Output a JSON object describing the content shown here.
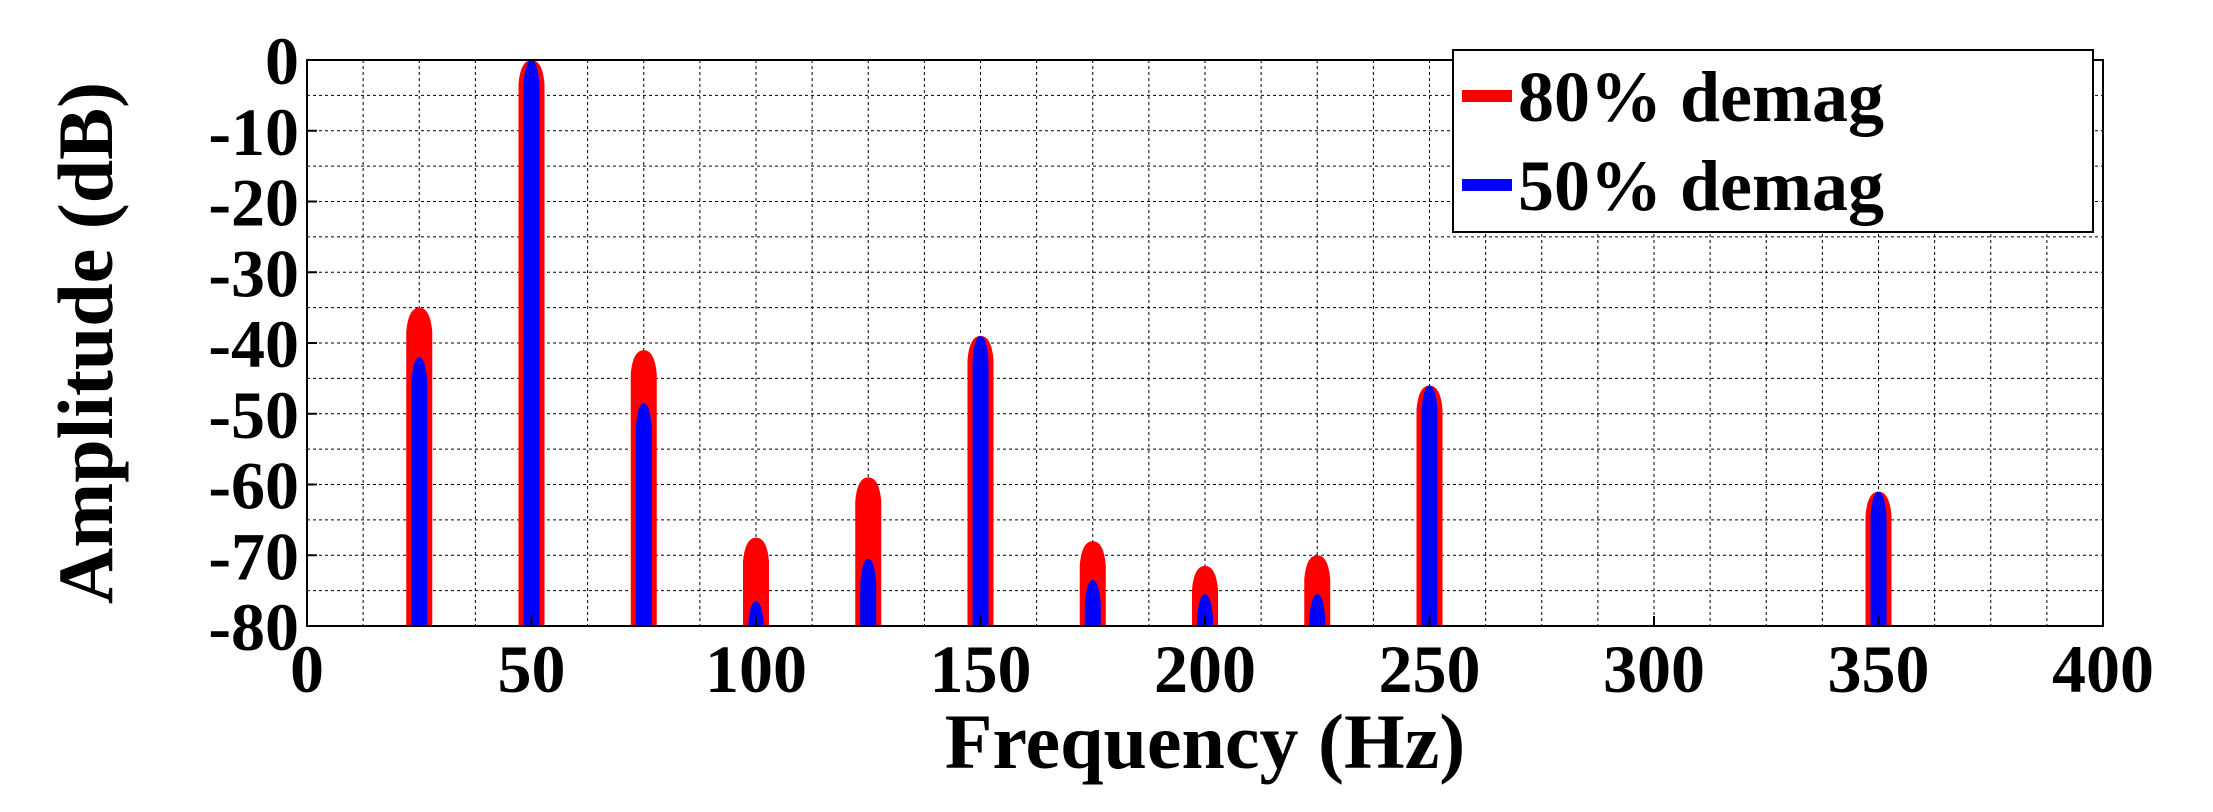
{
  "chart_data": {
    "type": "line",
    "xlabel": "Frequency (Hz)",
    "ylabel": "Amplitude (dB)",
    "xlim": [
      0,
      400
    ],
    "ylim": [
      -80,
      0
    ],
    "xticks": [
      0,
      50,
      100,
      150,
      200,
      250,
      300,
      350,
      400
    ],
    "yticks": [
      0,
      -10,
      -20,
      -30,
      -40,
      -50,
      -60,
      -70,
      -80
    ],
    "xtick_labels": [
      "0",
      "50",
      "100",
      "150",
      "200",
      "250",
      "300",
      "350",
      "400"
    ],
    "ytick_labels": [
      "0",
      "-10",
      "-20",
      "-30",
      "-40",
      "-50",
      "-60",
      "-70",
      "-80"
    ],
    "grid": true,
    "legend_position": "top-right",
    "series": [
      {
        "name": "80% demag",
        "color": "#ff0000",
        "peaks": [
          {
            "x": 25,
            "y": -35
          },
          {
            "x": 50,
            "y": 0
          },
          {
            "x": 75,
            "y": -41
          },
          {
            "x": 100,
            "y": -67.5
          },
          {
            "x": 125,
            "y": -59
          },
          {
            "x": 150,
            "y": -39
          },
          {
            "x": 175,
            "y": -68
          },
          {
            "x": 200,
            "y": -71.5
          },
          {
            "x": 225,
            "y": -70
          },
          {
            "x": 250,
            "y": -46
          },
          {
            "x": 350,
            "y": -61
          }
        ]
      },
      {
        "name": "50% demag",
        "color": "#0000ff",
        "peaks": [
          {
            "x": 25,
            "y": -42
          },
          {
            "x": 50,
            "y": 0
          },
          {
            "x": 75,
            "y": -48.5
          },
          {
            "x": 100,
            "y": -76.5
          },
          {
            "x": 125,
            "y": -70.5
          },
          {
            "x": 150,
            "y": -39
          },
          {
            "x": 175,
            "y": -73.5
          },
          {
            "x": 200,
            "y": -75.5
          },
          {
            "x": 225,
            "y": -75.5
          },
          {
            "x": 250,
            "y": -46
          },
          {
            "x": 350,
            "y": -61
          }
        ]
      }
    ]
  }
}
